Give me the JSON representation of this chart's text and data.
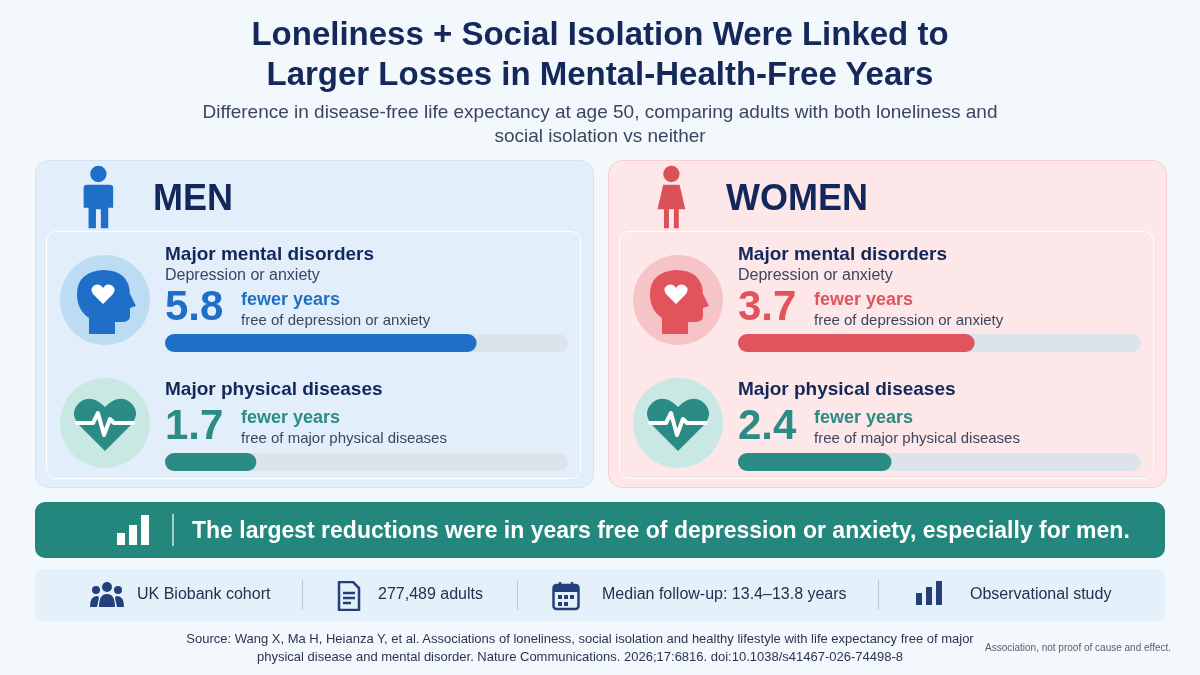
{
  "chart_data": [
    {
      "type": "other",
      "title": "Loneliness + Social Isolation Were Linked to Larger Losses in Mental-Health-Free Years",
      "subtitle": "Difference in disease-free life expectancy at age 50, comparing adults with both loneliness and social isolation vs neither"
    },
    {
      "type": "bar",
      "orientation": "horizontal",
      "title": "MEN",
      "categories": [
        "Major mental disorders",
        "Major physical diseases"
      ],
      "values": [
        5.8,
        1.7
      ],
      "colors": [
        "#1f6fc9",
        "#2a8c84"
      ],
      "xlim": [
        0,
        7.5
      ],
      "tick_labels": "y",
      "data_labels": true,
      "annotations": [
        "Depression or anxiety",
        "fewer years",
        "free of depression or anxiety",
        "fewer years",
        "free of major physical diseases"
      ]
    },
    {
      "type": "bar",
      "orientation": "horizontal",
      "title": "WOMEN",
      "categories": [
        "Major mental disorders",
        "Major physical diseases"
      ],
      "values": [
        3.7,
        2.4
      ],
      "colors": [
        "#e2545c",
        "#2a8c84"
      ],
      "xlim": [
        0,
        6.3
      ],
      "tick_labels": "y",
      "data_labels": true,
      "annotations": [
        "Depression or anxiety",
        "fewer years",
        "free of depression or anxiety",
        "fewer years",
        "free of major physical diseases"
      ]
    },
    {
      "type": "other",
      "annotations": [
        "The largest reductions were in years free of depression or anxiety, especially for men.",
        "UK Biobank cohort",
        "277,489 adults",
        "Median follow-up: 13.4–13.8 years",
        "Observational study",
        "Source: Wang X, Ma H, Heianza Y, et al. Associations of loneliness, social isolation and healthy lifestyle with life expectancy free of major physical disease and mental disorder. Nature Communications. 2026;17:6816. doi:10.1038/s41467-026-74498-8",
        "Association, not proof of cause and effect."
      ]
    }
  ]
}
